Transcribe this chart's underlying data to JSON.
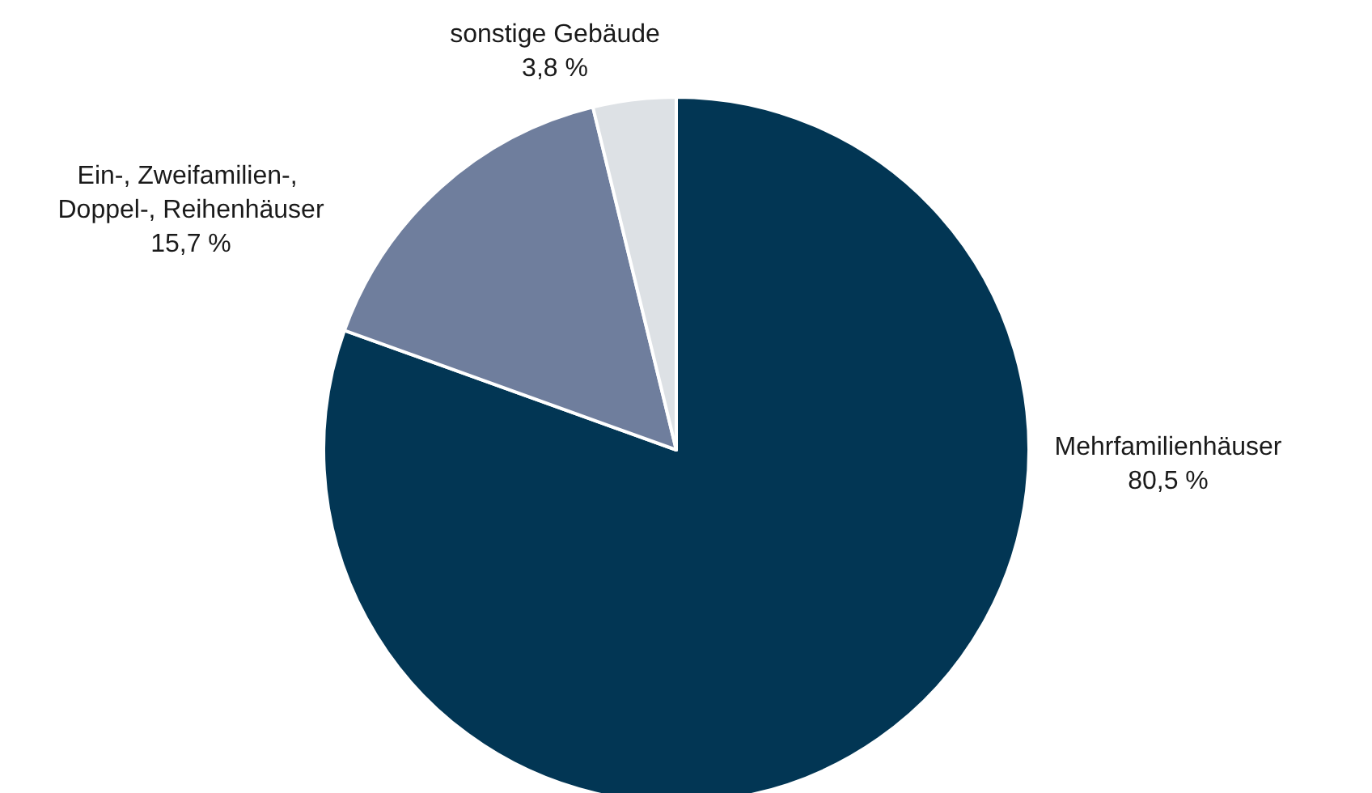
{
  "chart_data": {
    "type": "pie",
    "categories": [
      "Mehrfamilienhäuser",
      "Ein-, Zweifamilien-, Doppel-, Reihenhäuser",
      "sonstige Gebäude"
    ],
    "values": [
      80.5,
      15.7,
      3.8
    ],
    "colors": [
      "#023654",
      "#6f7e9d",
      "#dde1e5"
    ],
    "value_labels": [
      "80,5 %",
      "15,7 %",
      "3,8 %"
    ],
    "legend": false
  }
}
